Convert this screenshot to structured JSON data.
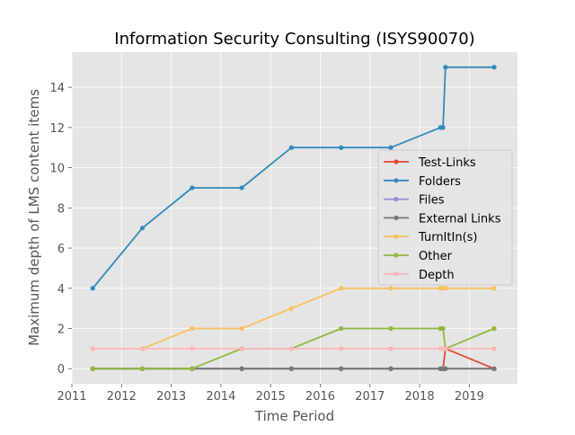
{
  "chart_data": {
    "type": "line",
    "title": "Information Security Consulting (ISYS90070)",
    "xlabel": "Time Period",
    "ylabel": "Maximum depth of LMS content items",
    "xlim": [
      2011.0,
      2019.97
    ],
    "ylim": [
      -0.75,
      15.75
    ],
    "xticks": [
      2011,
      2012,
      2013,
      2014,
      2015,
      2016,
      2017,
      2018,
      2019
    ],
    "yticks": [
      0,
      2,
      4,
      6,
      8,
      10,
      12,
      14
    ],
    "grid": true,
    "legend_position": "center-right",
    "series": [
      {
        "name": "Test-Links",
        "color": "#e24a33",
        "x": [
          2011.42,
          2012.42,
          2013.42,
          2014.42,
          2015.42,
          2016.42,
          2017.42,
          2018.42,
          2018.47,
          2018.52,
          2019.5
        ],
        "y": [
          0,
          0,
          0,
          0,
          0,
          0,
          0,
          0,
          0,
          1,
          0
        ]
      },
      {
        "name": "Folders",
        "color": "#348abd",
        "x": [
          2011.42,
          2012.42,
          2013.42,
          2014.42,
          2015.42,
          2016.42,
          2017.42,
          2018.42,
          2018.47,
          2018.52,
          2019.5
        ],
        "y": [
          4,
          7,
          9,
          9,
          11,
          11,
          11,
          12,
          12,
          15,
          15
        ]
      },
      {
        "name": "Files",
        "color": "#988ed5",
        "x": [
          2011.42,
          2012.42,
          2013.42,
          2014.42,
          2015.42,
          2016.42,
          2017.42,
          2018.42,
          2018.47,
          2018.52,
          2019.5
        ],
        "y": [
          0,
          0,
          0,
          0,
          0,
          0,
          0,
          0,
          0,
          0,
          0
        ]
      },
      {
        "name": "External Links",
        "color": "#777777",
        "x": [
          2011.42,
          2012.42,
          2013.42,
          2014.42,
          2015.42,
          2016.42,
          2017.42,
          2018.42,
          2018.47,
          2018.52,
          2019.5
        ],
        "y": [
          0,
          0,
          0,
          0,
          0,
          0,
          0,
          0,
          0,
          0,
          0
        ]
      },
      {
        "name": "TurnItIn(s)",
        "color": "#fbc15e",
        "x": [
          2011.42,
          2012.42,
          2013.42,
          2014.42,
          2015.42,
          2016.42,
          2017.42,
          2018.42,
          2018.47,
          2018.52,
          2019.5
        ],
        "y": [
          1,
          1,
          2,
          2,
          3,
          4,
          4,
          4,
          4,
          4,
          4
        ]
      },
      {
        "name": "Other",
        "color": "#8eba42",
        "x": [
          2011.42,
          2012.42,
          2013.42,
          2014.42,
          2015.42,
          2016.42,
          2017.42,
          2018.42,
          2018.47,
          2018.52,
          2019.5
        ],
        "y": [
          0,
          0,
          0,
          1,
          1,
          2,
          2,
          2,
          2,
          1,
          2
        ]
      },
      {
        "name": "Depth",
        "color": "#ffb5b8",
        "x": [
          2011.42,
          2012.42,
          2013.42,
          2014.42,
          2015.42,
          2016.42,
          2017.42,
          2018.42,
          2018.47,
          2018.52,
          2019.5
        ],
        "y": [
          1,
          1,
          1,
          1,
          1,
          1,
          1,
          1,
          1,
          1,
          1
        ]
      }
    ]
  },
  "colors": {
    "plot_background": "#e5e5e5",
    "grid": "#ffffff"
  }
}
